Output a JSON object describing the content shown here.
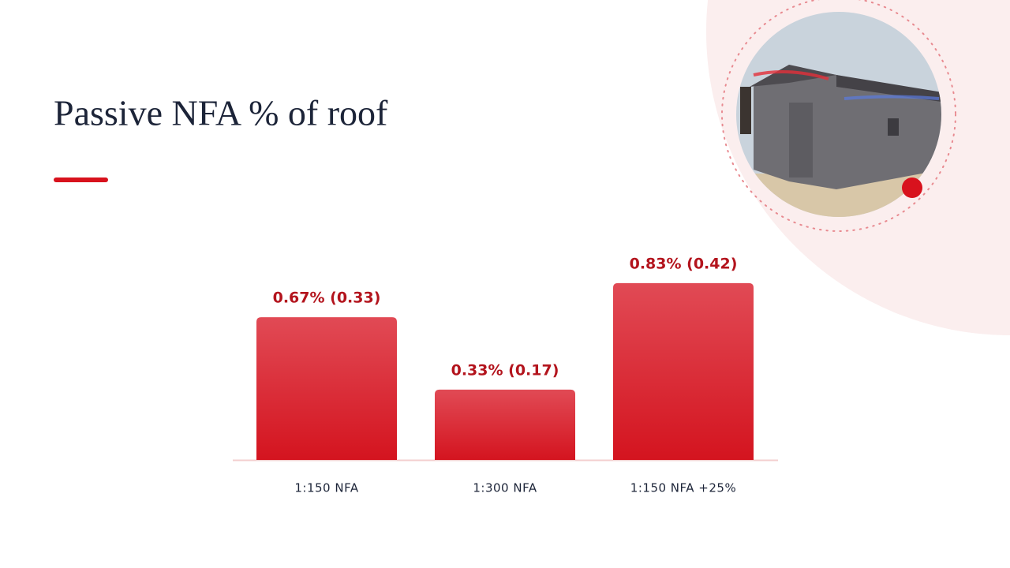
{
  "chart_data": {
    "type": "bar",
    "title": "Passive NFA % of roof",
    "categories": [
      "1:150 NFA",
      "1:300 NFA",
      "1:150 NFA +25%"
    ],
    "values": [
      0.67,
      0.33,
      0.83
    ],
    "value_labels": [
      "0.67% (0.33)",
      "0.33% (0.17)",
      "0.83% (0.42)"
    ],
    "color": "#d8202b",
    "ylim": [
      0,
      1
    ]
  }
}
